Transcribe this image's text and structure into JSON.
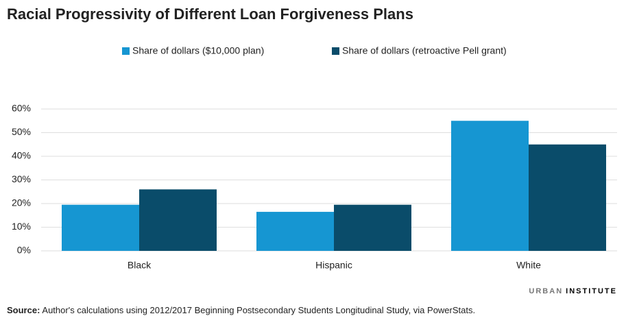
{
  "chart_data": {
    "type": "bar",
    "title": "Racial Progressivity of Different Loan Forgiveness Plans",
    "categories": [
      "Black",
      "Hispanic",
      "White"
    ],
    "series": [
      {
        "name": "Share of dollars ($10,000 plan)",
        "color": "#1696d2",
        "values": [
          19.5,
          16.5,
          55
        ]
      },
      {
        "name": "Share of dollars (retroactive Pell grant)",
        "color": "#0a4c6a",
        "values": [
          26,
          19.5,
          45
        ]
      }
    ],
    "ylim": [
      0,
      60
    ],
    "yticks": [
      {
        "value": 0,
        "label": "0%"
      },
      {
        "value": 10,
        "label": "10%"
      },
      {
        "value": 20,
        "label": "20%"
      },
      {
        "value": 30,
        "label": "30%"
      },
      {
        "value": 40,
        "label": "40%"
      },
      {
        "value": 50,
        "label": "50%"
      },
      {
        "value": 60,
        "label": "60%"
      }
    ],
    "grid": true,
    "legend": "top"
  },
  "source": {
    "label": "Source:",
    "text": "Author's calculations using 2012/2017 Beginning Postsecondary Students Longitudinal Study, via PowerStats."
  },
  "branding": {
    "urban": "URBAN",
    "institute": "INSTITUTE"
  }
}
